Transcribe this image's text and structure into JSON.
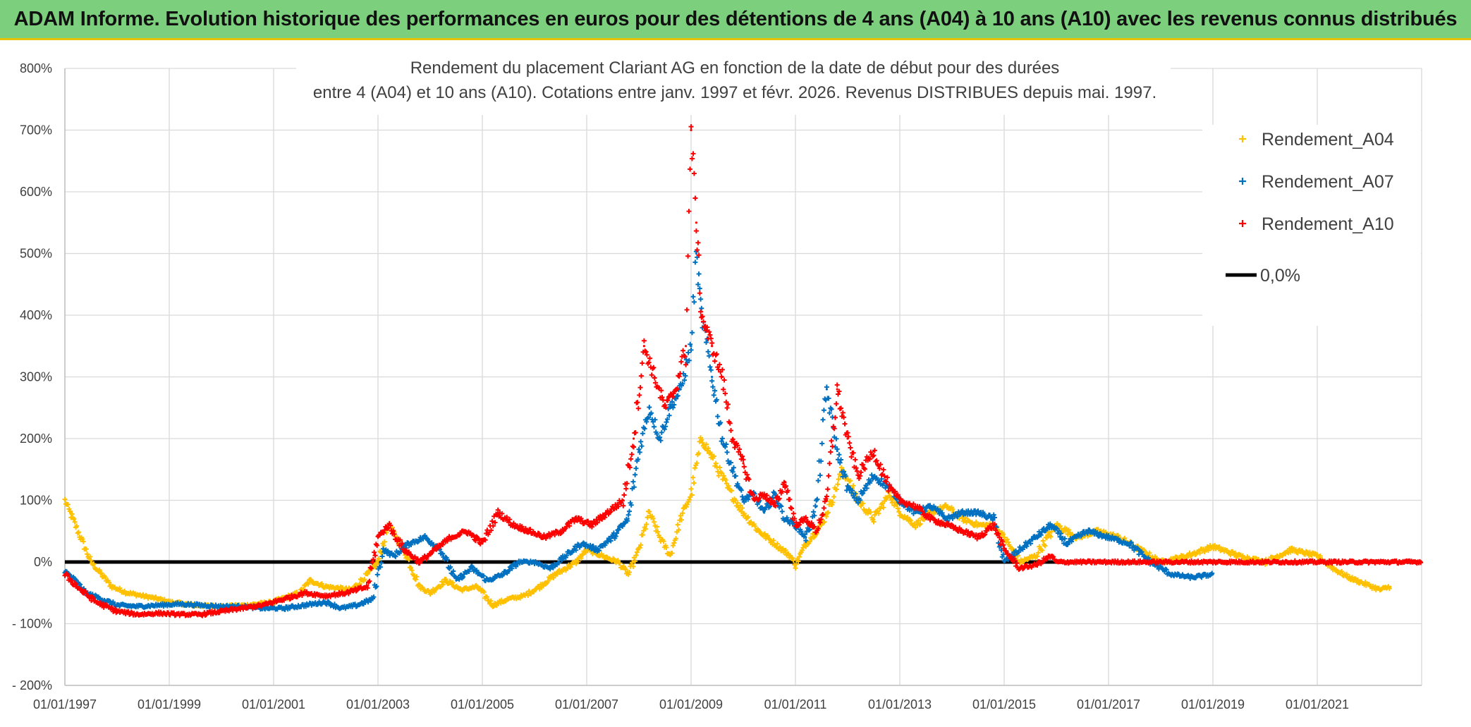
{
  "banner": {
    "title": "ADAM Informe. Evolution historique des performances en euros pour des détentions de 4 ans (A04) à 10 ans (A10) avec les revenus connus distribués"
  },
  "chart_data": {
    "type": "scatter",
    "title_line1": "Rendement du placement Clariant AG en fonction de la date de début pour des durées",
    "title_line2": "entre 4 (A04) et 10 ans (A10). Cotations entre janv. 1997 et févr. 2026. Revenus DISTRIBUES depuis mai. 1997.",
    "xlabel": "",
    "ylabel": "",
    "xlim": [
      1997.0,
      2023.0
    ],
    "ylim": [
      -200,
      800
    ],
    "y_ticks": [
      {
        "value": -200,
        "label": "- 200%"
      },
      {
        "value": -100,
        "label": "- 100%"
      },
      {
        "value": 0,
        "label": "0%"
      },
      {
        "value": 100,
        "label": "100%"
      },
      {
        "value": 200,
        "label": "200%"
      },
      {
        "value": 300,
        "label": "300%"
      },
      {
        "value": 400,
        "label": "400%"
      },
      {
        "value": 500,
        "label": "500%"
      },
      {
        "value": 600,
        "label": "600%"
      },
      {
        "value": 700,
        "label": "700%"
      },
      {
        "value": 800,
        "label": "800%"
      }
    ],
    "x_ticks": [
      {
        "value": 1997,
        "label": "01/01/1997"
      },
      {
        "value": 1999,
        "label": "01/01/1999"
      },
      {
        "value": 2001,
        "label": "01/01/2001"
      },
      {
        "value": 2003,
        "label": "01/01/2003"
      },
      {
        "value": 2005,
        "label": "01/01/2005"
      },
      {
        "value": 2007,
        "label": "01/01/2007"
      },
      {
        "value": 2009,
        "label": "01/01/2009"
      },
      {
        "value": 2011,
        "label": "01/01/2011"
      },
      {
        "value": 2013,
        "label": "01/01/2013"
      },
      {
        "value": 2015,
        "label": "01/01/2015"
      },
      {
        "value": 2017,
        "label": "01/01/2017"
      },
      {
        "value": 2019,
        "label": "01/01/2019"
      },
      {
        "value": 2021,
        "label": "01/01/2021"
      }
    ],
    "grid": true,
    "legend_position": "top-right",
    "reference_line": {
      "name": "0,0%",
      "value": 0,
      "color": "#000000"
    },
    "series": [
      {
        "name": "Rendement_A04",
        "color": "#ffc000",
        "x": [
          1997.0,
          1997.1,
          1997.3,
          1997.5,
          1997.7,
          1997.9,
          1998.2,
          1998.5,
          1998.8,
          1999.0,
          1999.5,
          2000.0,
          2000.5,
          2001.0,
          2001.5,
          2001.7,
          2002.0,
          2002.5,
          2002.8,
          2003.0,
          2003.2,
          2003.5,
          2003.8,
          2004.0,
          2004.3,
          2004.6,
          2004.9,
          2005.2,
          2005.5,
          2005.8,
          2006.1,
          2006.4,
          2006.8,
          2007.0,
          2007.3,
          2007.6,
          2007.8,
          2008.0,
          2008.2,
          2008.4,
          2008.6,
          2008.8,
          2009.0,
          2009.2,
          2009.4,
          2009.7,
          2010.0,
          2010.3,
          2010.6,
          2010.9,
          2011.0,
          2011.2,
          2011.5,
          2011.7,
          2011.9,
          2012.2,
          2012.5,
          2012.8,
          2013.0,
          2013.3,
          2013.6,
          2013.9,
          2014.2,
          2014.5,
          2014.8,
          2015.0,
          2015.3,
          2015.6,
          2016.0,
          2016.4,
          2016.8,
          2017.2,
          2017.6,
          2018.0,
          2018.5,
          2019.0,
          2019.5,
          2020.0,
          2020.5,
          2021.0,
          2021.3,
          2021.6,
          2021.9,
          2022.2,
          2022.4
        ],
        "values": [
          100,
          80,
          40,
          0,
          -20,
          -40,
          -50,
          -55,
          -60,
          -65,
          -70,
          -72,
          -70,
          -65,
          -50,
          -30,
          -40,
          -45,
          -20,
          0,
          60,
          20,
          -40,
          -50,
          -30,
          -45,
          -40,
          -70,
          -60,
          -55,
          -40,
          -20,
          0,
          20,
          10,
          0,
          -20,
          20,
          80,
          40,
          10,
          70,
          110,
          200,
          170,
          120,
          80,
          50,
          30,
          10,
          -5,
          30,
          60,
          100,
          150,
          100,
          70,
          110,
          80,
          60,
          80,
          90,
          70,
          60,
          60,
          40,
          0,
          10,
          60,
          40,
          50,
          40,
          20,
          0,
          10,
          25,
          10,
          0,
          20,
          10,
          -10,
          -25,
          -35,
          -45,
          -40
        ]
      },
      {
        "name": "Rendement_A07",
        "color": "#0070c0",
        "x": [
          1997.0,
          1997.2,
          1997.4,
          1997.7,
          1998.0,
          1998.4,
          1998.8,
          1999.2,
          1999.6,
          2000.0,
          2000.4,
          2000.8,
          2001.2,
          2001.6,
          2002.0,
          2002.3,
          2002.6,
          2002.9,
          2003.1,
          2003.3,
          2003.6,
          2003.9,
          2004.2,
          2004.5,
          2004.8,
          2005.1,
          2005.4,
          2005.7,
          2006.0,
          2006.3,
          2006.6,
          2006.9,
          2007.2,
          2007.5,
          2007.8,
          2008.0,
          2008.2,
          2008.4,
          2008.6,
          2008.8,
          2009.0,
          2009.1,
          2009.2,
          2009.4,
          2009.6,
          2009.8,
          2010.0,
          2010.2,
          2010.4,
          2010.6,
          2010.8,
          2011.0,
          2011.2,
          2011.4,
          2011.6,
          2011.8,
          2012.0,
          2012.2,
          2012.5,
          2012.8,
          2013.0,
          2013.3,
          2013.6,
          2013.9,
          2014.2,
          2014.5,
          2014.8,
          2015.0,
          2015.3,
          2015.6,
          2015.9,
          2016.2,
          2016.6,
          2017.0,
          2017.4,
          2017.8,
          2018.2,
          2018.6,
          2019.0
        ],
        "values": [
          -15,
          -30,
          -50,
          -60,
          -70,
          -72,
          -70,
          -68,
          -70,
          -72,
          -72,
          -75,
          -75,
          -70,
          -65,
          -75,
          -70,
          -60,
          20,
          10,
          30,
          40,
          20,
          -30,
          -10,
          -30,
          -20,
          0,
          0,
          -10,
          10,
          30,
          20,
          40,
          70,
          180,
          250,
          200,
          250,
          280,
          350,
          500,
          400,
          300,
          200,
          150,
          100,
          110,
          80,
          110,
          70,
          60,
          40,
          90,
          280,
          180,
          120,
          100,
          140,
          120,
          100,
          80,
          90,
          70,
          80,
          80,
          70,
          0,
          20,
          40,
          60,
          30,
          50,
          40,
          30,
          0,
          -20,
          -25,
          -20
        ]
      },
      {
        "name": "Rendement_A10",
        "color": "#ff0000",
        "x": [
          1997.0,
          1997.3,
          1997.6,
          1998.0,
          1998.4,
          1998.8,
          1999.2,
          1999.6,
          2000.0,
          2000.4,
          2000.8,
          2001.2,
          2001.6,
          2002.0,
          2002.4,
          2002.8,
          2003.0,
          2003.2,
          2003.5,
          2003.8,
          2004.1,
          2004.4,
          2004.7,
          2005.0,
          2005.3,
          2005.6,
          2005.9,
          2006.2,
          2006.5,
          2006.8,
          2007.1,
          2007.4,
          2007.7,
          2007.9,
          2008.1,
          2008.3,
          2008.5,
          2008.7,
          2008.9,
          2009.0,
          2009.1,
          2009.2,
          2009.4,
          2009.6,
          2009.8,
          2010.0,
          2010.2,
          2010.4,
          2010.6,
          2010.8,
          2011.0,
          2011.2,
          2011.4,
          2011.6,
          2011.8,
          2012.0,
          2012.2,
          2012.5,
          2012.8,
          2013.0,
          2013.3,
          2013.6,
          2013.9,
          2014.2,
          2014.5,
          2014.8,
          2015.0,
          2015.3,
          2015.6,
          2015.9,
          2016.0,
          2016.5,
          2017.0,
          2017.5,
          2018.0,
          2018.5,
          2019.0,
          2019.5,
          2020.0,
          2020.5,
          2021.0,
          2021.5,
          2022.0,
          2022.5,
          2023.0
        ],
        "values": [
          -20,
          -45,
          -65,
          -80,
          -85,
          -83,
          -85,
          -85,
          -80,
          -75,
          -70,
          -60,
          -50,
          -55,
          -50,
          -40,
          40,
          60,
          20,
          0,
          20,
          40,
          50,
          30,
          80,
          60,
          50,
          40,
          50,
          70,
          60,
          80,
          100,
          200,
          350,
          300,
          250,
          280,
          350,
          700,
          550,
          400,
          350,
          300,
          200,
          160,
          100,
          110,
          90,
          130,
          60,
          70,
          50,
          100,
          280,
          200,
          140,
          180,
          120,
          100,
          90,
          70,
          60,
          50,
          40,
          60,
          20,
          -10,
          -5,
          10,
          0,
          0,
          0,
          0,
          0,
          0,
          0,
          0,
          0,
          0,
          0,
          0,
          0,
          0,
          0
        ]
      }
    ]
  }
}
